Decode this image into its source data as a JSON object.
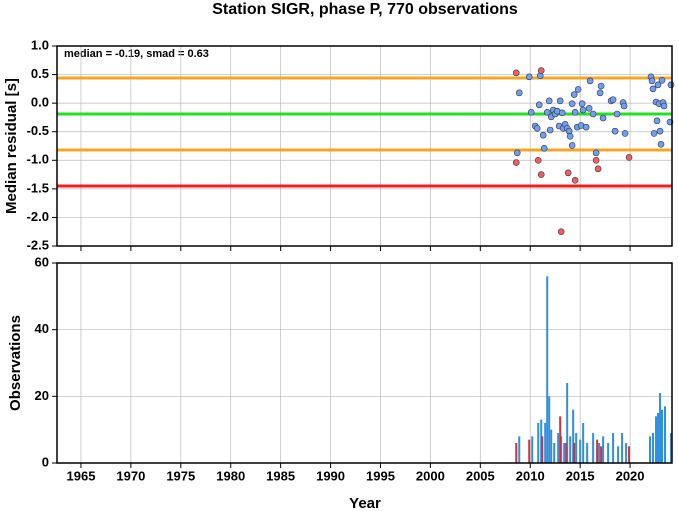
{
  "chart_data": [
    {
      "type": "scatter",
      "title": "Station SIGR, phase P, 770 observations",
      "ylabel": "Median residual [s]",
      "annotation": "median = -0.19, smad = 0.63",
      "xlim": [
        1962.6,
        2024.2
      ],
      "xticks": [
        1965,
        1970,
        1975,
        1980,
        1985,
        1990,
        1995,
        2000,
        2005,
        2010,
        2015,
        2020
      ],
      "xtick_labels": false,
      "ylim": [
        -2.5,
        1.0
      ],
      "yticks": [
        {
          "value": 1,
          "label": "1.0"
        },
        0.5,
        {
          "value": 0,
          "label": "0.0"
        },
        -0.5,
        {
          "value": -1,
          "label": "-1.0"
        },
        -1.5,
        {
          "value": -2,
          "label": "-2.0"
        },
        -2.5
      ],
      "grid": true,
      "reference_lines": [
        {
          "value": 0.44,
          "color": "#f5a623"
        },
        {
          "value": -0.19,
          "color": "#22e022"
        },
        {
          "value": -0.82,
          "color": "#f5a623"
        },
        {
          "value": -1.45,
          "color": "#f02020"
        }
      ],
      "series": [
        {
          "color": "#6fa0f0",
          "x": [
            2008.9,
            2008.7,
            2009.9,
            2010.1,
            2010.5,
            2010.7,
            2010.9,
            2011.0,
            2011.3,
            2011.4,
            2011.7,
            2011.9,
            2012.1,
            2012.0,
            2012.3,
            2012.5,
            2012.7,
            2012.9,
            2013.0,
            2013.2,
            2013.3,
            2013.5,
            2013.7,
            2013.9,
            2014.0,
            2014.2,
            2014.2,
            2014.4,
            2014.5,
            2014.7,
            2014.8,
            2015.1,
            2015.2,
            2015.3,
            2015.6,
            2015.9,
            2016.0,
            2016.3,
            2016.6,
            2017.0,
            2017.1,
            2017.3,
            2018.1,
            2018.3,
            2018.5,
            2018.7,
            2019.3,
            2019.4,
            2019.5,
            2022.1,
            2022.2,
            2022.3,
            2022.4,
            2022.6,
            2022.7,
            2022.8,
            2022.9,
            2023.0,
            2023.1,
            2023.2,
            2023.3,
            2023.4,
            2024.0,
            2024.1
          ],
          "values": [
            0.18,
            -0.87,
            0.46,
            -0.16,
            -0.4,
            -0.44,
            -0.03,
            0.48,
            -0.56,
            -0.79,
            -0.16,
            0.04,
            -0.24,
            -0.47,
            -0.12,
            -0.19,
            -0.14,
            -0.4,
            0.04,
            -0.17,
            -0.44,
            -0.37,
            -0.44,
            -0.49,
            -0.58,
            -0.74,
            -0.01,
            0.15,
            -0.16,
            -0.42,
            0.24,
            -0.39,
            -0.01,
            -0.12,
            -0.42,
            -0.09,
            0.39,
            -0.19,
            -0.87,
            0.18,
            0.3,
            -0.26,
            0.04,
            0.06,
            -0.49,
            -0.19,
            0.01,
            -0.05,
            -0.53,
            0.46,
            0.39,
            0.25,
            -0.53,
            0.02,
            -0.31,
            0.32,
            -0.01,
            -0.49,
            -0.72,
            0.4,
            0.01,
            -0.05,
            -0.33,
            0.32
          ]
        },
        {
          "color": "#f06060",
          "x": [
            2008.6,
            2008.6,
            2011.1,
            2010.8,
            2011.1,
            2013.1,
            2013.8,
            2014.5,
            2016.6,
            2016.8,
            2019.9
          ],
          "values": [
            0.53,
            -1.04,
            0.57,
            -1.0,
            -1.25,
            -2.25,
            -1.22,
            -1.35,
            -1.0,
            -1.15,
            -0.95
          ]
        }
      ]
    },
    {
      "type": "bar",
      "xlabel": "Year",
      "ylabel": "Observations",
      "xlim": [
        1962.6,
        2024.2
      ],
      "xticks": [
        1965,
        1970,
        1975,
        1980,
        1985,
        1990,
        1995,
        2000,
        2005,
        2010,
        2015,
        2020
      ],
      "xtick_labels": true,
      "ylim": [
        0,
        60
      ],
      "yticks": [
        0,
        20,
        40,
        60
      ],
      "grid": true,
      "series": [
        {
          "color": "#2f8fe0",
          "x": [
            2008.9,
            2010.2,
            2010.8,
            2011.1,
            2011.5,
            2011.7,
            2011.9,
            2012.1,
            2012.4,
            2012.8,
            2013.1,
            2013.4,
            2013.7,
            2014.0,
            2014.3,
            2014.6,
            2015.0,
            2015.3,
            2015.7,
            2016.3,
            2016.9,
            2017.3,
            2017.8,
            2018.3,
            2018.8,
            2019.2,
            2019.6,
            2022.0,
            2022.3,
            2022.6,
            2022.8,
            2023.0,
            2023.2,
            2023.5,
            2024.1
          ],
          "values": [
            8,
            8,
            12,
            13,
            12,
            56,
            20,
            10,
            6,
            9,
            8,
            6,
            24,
            8,
            16,
            9,
            7,
            12,
            6,
            9,
            6,
            8,
            6,
            9,
            5,
            9,
            6,
            8,
            9,
            14,
            15,
            21,
            16,
            17,
            9
          ]
        },
        {
          "color": "#d0303a",
          "x": [
            2008.6,
            2009.9,
            2011.2,
            2013.0,
            2013.6,
            2014.4,
            2016.7,
            2017.1,
            2019.9
          ],
          "values": [
            6,
            7,
            8,
            14,
            6,
            6,
            7,
            5,
            5
          ]
        }
      ]
    }
  ]
}
